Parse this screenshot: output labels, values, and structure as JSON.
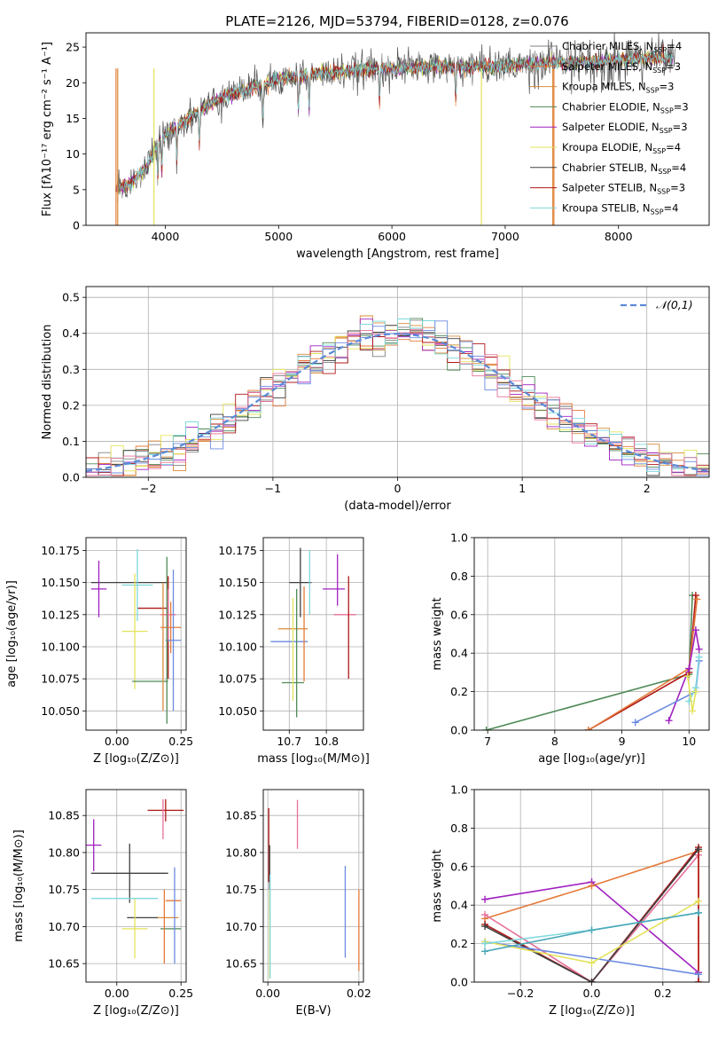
{
  "figure": {
    "title": "PLATE=2126, MJD=53794, FIBERID=0128, z=0.076"
  },
  "series_colors": [
    "#808080",
    "#e47a3a",
    "#d98c3a",
    "#4e8a57",
    "#a020c0",
    "#e3e35a",
    "#404040",
    "#b01818",
    "#7fd8dc",
    "#6a8be0",
    "#e6709a"
  ],
  "chart_data": [
    {
      "name": "spectrum",
      "type": "line",
      "xlabel": "wavelength [Angstrom, rest frame]",
      "ylabel": "Flux [fλ10⁻¹⁷ erg cm⁻² s⁻¹ A⁻¹]",
      "xlim": [
        3300,
        8800
      ],
      "ylim": [
        0,
        27
      ],
      "xticks": [
        4000,
        5000,
        6000,
        7000,
        8000
      ],
      "yticks": [
        0,
        5,
        10,
        15,
        20,
        25
      ],
      "grid": false,
      "legend_position": "right",
      "series": [
        {
          "name": "Chabrier MILES, N_SSP=4",
          "color": "#808080"
        },
        {
          "name": "Salpeter MILES, N_SSP=3",
          "color": "#e47a3a"
        },
        {
          "name": "Kroupa MILES, N_SSP=3",
          "color": "#d98c3a"
        },
        {
          "name": "Chabrier ELODIE, N_SSP=3",
          "color": "#4e8a57"
        },
        {
          "name": "Salpeter ELODIE, N_SSP=3",
          "color": "#a020c0"
        },
        {
          "name": "Kroupa ELODIE, N_SSP=4",
          "color": "#e3e35a"
        },
        {
          "name": "Chabrier STELIB, N_SSP=4",
          "color": "#404040"
        },
        {
          "name": "Salpeter STELIB, N_SSP=3",
          "color": "#b01818"
        },
        {
          "name": "Kroupa STELIB, N_SSP=4",
          "color": "#7fd8dc"
        }
      ],
      "continuum": {
        "x": [
          3560,
          3700,
          3850,
          3950,
          4100,
          4300,
          4500,
          4800,
          5000,
          5200,
          5400,
          5700,
          6000,
          6300,
          6600,
          6900,
          7200,
          7500,
          7800,
          8100,
          8400
        ],
        "y": [
          5,
          6,
          8.5,
          12,
          14,
          16,
          18,
          19.5,
          20.5,
          21,
          21.3,
          21.8,
          22,
          22.2,
          22.3,
          22.3,
          22.6,
          22.8,
          23,
          23.3,
          23.5
        ]
      }
    },
    {
      "name": "residual-distribution",
      "type": "line",
      "xlabel": "(data-model)/error",
      "ylabel": "Normed distribution",
      "xlim": [
        -2.5,
        2.5
      ],
      "ylim": [
        0,
        0.53
      ],
      "xticks": [
        -2,
        -1,
        0,
        1,
        2
      ],
      "yticks": [
        0.0,
        0.1,
        0.2,
        0.3,
        0.4,
        0.5
      ],
      "grid": true,
      "legend_position": "top-right",
      "legend_label": "𝒩(0,1)",
      "bin_width": 0.1
    },
    {
      "name": "age-vs-Z",
      "type": "scatter",
      "xlabel": "Z [log₁₀(Z/Z⊙)]",
      "ylabel": "age  [log₁₀(age/yr)]",
      "xlim": [
        -0.12,
        0.27
      ],
      "ylim": [
        10.035,
        10.185
      ],
      "xticks": [
        0.0,
        0.25
      ],
      "yticks": [
        10.05,
        10.075,
        10.1,
        10.125,
        10.15,
        10.175
      ],
      "points": [
        {
          "x": -0.07,
          "y": 10.15,
          "xe": 0.06,
          "ye": 0.0,
          "c": "#404040",
          "xl": -0.1,
          "xh": 0.2
        },
        {
          "x": 0.2,
          "y": 10.115,
          "xe": 0.0,
          "ye": 0.04,
          "c": "#b01818"
        },
        {
          "x": 0.14,
          "y": 10.13,
          "xe": 0.06,
          "ye": 0.0,
          "c": "#b01818"
        },
        {
          "x": -0.07,
          "y": 10.145,
          "xe": 0.03,
          "ye": 0.022,
          "c": "#a020c0"
        },
        {
          "x": 0.08,
          "y": 10.148,
          "xe": 0.06,
          "ye": 0.028,
          "c": "#7fd8dc"
        },
        {
          "x": 0.07,
          "y": 10.112,
          "xe": 0.05,
          "ye": 0.045,
          "c": "#e3e35a"
        },
        {
          "x": 0.2,
          "y": 10.125,
          "xe": 0.03,
          "ye": 0.02,
          "c": "#e6709a"
        },
        {
          "x": 0.21,
          "y": 10.115,
          "xe": 0.04,
          "ye": 0.02,
          "c": "#e47a3a"
        },
        {
          "x": 0.22,
          "y": 10.105,
          "xe": 0.03,
          "ye": 0.055,
          "c": "#6a8be0"
        },
        {
          "x": 0.13,
          "y": 10.073,
          "xe": 0.07,
          "ye": 0.0,
          "c": "#4e8a57"
        },
        {
          "x": 0.195,
          "y": 10.105,
          "xe": 0.0,
          "ye": 0.065,
          "c": "#4e8a57"
        },
        {
          "x": 0.18,
          "y": 10.1,
          "xe": 0.0,
          "ye": 0.05,
          "c": "#d98c3a"
        }
      ]
    },
    {
      "name": "age-vs-mass",
      "type": "scatter",
      "xlabel": "mass [log₁₀(M/M⊙)]",
      "ylabel": "",
      "xlim": [
        10.63,
        10.9
      ],
      "ylim": [
        10.035,
        10.185
      ],
      "xticks": [
        10.7,
        10.8
      ],
      "yticks": [
        10.05,
        10.075,
        10.1,
        10.125,
        10.15,
        10.175
      ],
      "points": [
        {
          "x": 10.71,
          "y": 10.072,
          "xe": 0.03,
          "ye": 0.0,
          "c": "#4e8a57"
        },
        {
          "x": 10.7,
          "y": 10.104,
          "xe": 0.05,
          "ye": 0.0,
          "c": "#6a8be0"
        },
        {
          "x": 10.71,
          "y": 10.114,
          "xe": 0.04,
          "ye": 0.0,
          "c": "#d98c3a"
        },
        {
          "x": 10.71,
          "y": 10.098,
          "xe": 0.0,
          "ye": 0.04,
          "c": "#e3e35a"
        },
        {
          "x": 10.72,
          "y": 10.095,
          "xe": 0.0,
          "ye": 0.05,
          "c": "#4e8a57"
        },
        {
          "x": 10.74,
          "y": 10.11,
          "xe": 0.0,
          "ye": 0.037,
          "c": "#e47a3a"
        },
        {
          "x": 10.73,
          "y": 10.15,
          "xe": 0.03,
          "ye": 0.027,
          "c": "#404040"
        },
        {
          "x": 10.755,
          "y": 10.15,
          "xe": 0.0,
          "ye": 0.025,
          "c": "#7fd8dc"
        },
        {
          "x": 10.82,
          "y": 10.145,
          "xe": 0.03,
          "ye": 0.0,
          "c": "#a020c0"
        },
        {
          "x": 10.83,
          "y": 10.152,
          "xe": 0.0,
          "ye": 0.02,
          "c": "#a020c0"
        },
        {
          "x": 10.85,
          "y": 10.125,
          "xe": 0.03,
          "ye": 0.0,
          "c": "#e6709a"
        },
        {
          "x": 10.86,
          "y": 10.115,
          "xe": 0.0,
          "ye": 0.04,
          "c": "#b01818"
        }
      ]
    },
    {
      "name": "mass-weight-vs-age",
      "type": "line",
      "xlabel": "age  [log₁₀(age/yr)]",
      "ylabel": "mass weight",
      "xlim": [
        6.8,
        10.3
      ],
      "ylim": [
        0.0,
        1.0
      ],
      "xticks": [
        7,
        8,
        9,
        10
      ],
      "yticks": [
        0.0,
        0.2,
        0.4,
        0.6,
        0.8,
        1.0
      ],
      "grid": true,
      "series": [
        {
          "c": "#4e8a57",
          "x": [
            6.98,
            10.0,
            10.05
          ],
          "y": [
            0.0,
            0.29,
            0.7
          ]
        },
        {
          "c": "#b01818",
          "x": [
            8.5,
            10.0,
            10.1
          ],
          "y": [
            0.0,
            0.3,
            0.7
          ]
        },
        {
          "c": "#e47a3a",
          "x": [
            8.5,
            10.0,
            10.12
          ],
          "y": [
            0.0,
            0.32,
            0.68
          ]
        },
        {
          "c": "#a020c0",
          "x": [
            9.7,
            10.0,
            10.1,
            10.15
          ],
          "y": [
            0.05,
            0.32,
            0.52,
            0.42
          ]
        },
        {
          "c": "#6a8be0",
          "x": [
            9.2,
            10.1,
            10.15
          ],
          "y": [
            0.04,
            0.2,
            0.36
          ]
        },
        {
          "c": "#7fd8dc",
          "x": [
            10.0,
            10.1,
            10.15
          ],
          "y": [
            0.15,
            0.22,
            0.38
          ]
        },
        {
          "c": "#e3e35a",
          "x": [
            9.98,
            10.05,
            10.1
          ],
          "y": [
            0.28,
            0.1,
            0.2
          ]
        }
      ]
    },
    {
      "name": "mass-vs-Z",
      "type": "scatter",
      "xlabel": "Z [log₁₀(Z/Z⊙)]",
      "ylabel": "mass [log₁₀(M/M⊙)]",
      "xlim": [
        -0.12,
        0.27
      ],
      "ylim": [
        10.625,
        10.885
      ],
      "xticks": [
        0.0,
        0.25
      ],
      "yticks": [
        10.65,
        10.7,
        10.75,
        10.8,
        10.85
      ],
      "points": [
        {
          "x": 0.19,
          "y": 10.857,
          "xe": 0.07,
          "ye": 0.015,
          "c": "#b01818"
        },
        {
          "x": 0.18,
          "y": 10.845,
          "xe": 0.0,
          "ye": 0.027,
          "c": "#e6709a"
        },
        {
          "x": -0.09,
          "y": 10.81,
          "xe": 0.03,
          "ye": 0.035,
          "c": "#a020c0"
        },
        {
          "x": 0.05,
          "y": 10.772,
          "xe": 0.15,
          "ye": 0.0,
          "c": "#404040"
        },
        {
          "x": 0.05,
          "y": 10.772,
          "xe": 0.0,
          "ye": 0.04,
          "c": "#404040"
        },
        {
          "x": 0.03,
          "y": 10.738,
          "xe": 0.13,
          "ye": 0.0,
          "c": "#7fd8dc"
        },
        {
          "x": 0.22,
          "y": 10.735,
          "xe": 0.03,
          "ye": 0.0,
          "c": "#e47a3a"
        },
        {
          "x": 0.1,
          "y": 10.712,
          "xe": 0.06,
          "ye": 0.0,
          "c": "#404040"
        },
        {
          "x": 0.2,
          "y": 10.712,
          "xe": 0.04,
          "ye": 0.0,
          "c": "#d98c3a"
        },
        {
          "x": 0.07,
          "y": 10.697,
          "xe": 0.05,
          "ye": 0.04,
          "c": "#e3e35a"
        },
        {
          "x": 0.21,
          "y": 10.697,
          "xe": 0.04,
          "ye": 0.0,
          "c": "#4e8a57"
        },
        {
          "x": 0.225,
          "y": 10.715,
          "xe": 0.0,
          "ye": 0.065,
          "c": "#6a8be0"
        },
        {
          "x": 0.185,
          "y": 10.7,
          "xe": 0.0,
          "ye": 0.05,
          "c": "#e47a3a"
        }
      ]
    },
    {
      "name": "mass-vs-EBV",
      "type": "scatter",
      "xlabel": "E(B-V)",
      "ylabel": "",
      "xlim": [
        -0.001,
        0.021
      ],
      "ylim": [
        10.625,
        10.885
      ],
      "xticks": [
        0.0,
        0.02
      ],
      "yticks": [
        10.65,
        10.7,
        10.75,
        10.8,
        10.85
      ],
      "points": [
        {
          "x": 0.0002,
          "y": 10.81,
          "xe": 0.0,
          "ye": 0.05,
          "c": "#b01818"
        },
        {
          "x": 0.0004,
          "y": 10.76,
          "xe": 0.0,
          "ye": 0.05,
          "c": "#404040"
        },
        {
          "x": 0.0004,
          "y": 10.69,
          "xe": 0.0,
          "ye": 0.06,
          "c": "#e3e35a"
        },
        {
          "x": 0.0005,
          "y": 10.7,
          "xe": 0.0,
          "ye": 0.07,
          "c": "#7fd8dc"
        },
        {
          "x": 0.0065,
          "y": 10.838,
          "xe": 0.0,
          "ye": 0.033,
          "c": "#e6709a"
        },
        {
          "x": 0.017,
          "y": 10.72,
          "xe": 0.0,
          "ye": 0.062,
          "c": "#6a8be0"
        },
        {
          "x": 0.02,
          "y": 10.695,
          "xe": 0.0,
          "ye": 0.055,
          "c": "#e47a3a"
        }
      ]
    },
    {
      "name": "mass-weight-vs-Z",
      "type": "line",
      "xlabel": "Z [log₁₀(Z/Z⊙)]",
      "ylabel": "mass weight",
      "xlim": [
        -0.33,
        0.33
      ],
      "ylim": [
        0.0,
        1.0
      ],
      "xticks": [
        -0.2,
        0.0,
        0.2
      ],
      "yticks": [
        0.0,
        0.2,
        0.4,
        0.6,
        0.8,
        1.0
      ],
      "grid": true,
      "series": [
        {
          "c": "#a020c0",
          "x": [
            -0.3,
            0.0,
            0.3
          ],
          "y": [
            0.43,
            0.52,
            0.05
          ]
        },
        {
          "c": "#e47a3a",
          "x": [
            -0.3,
            0.0,
            0.3,
            0.3
          ],
          "y": [
            0.33,
            0.5,
            0.68,
            0.0
          ]
        },
        {
          "c": "#e6709a",
          "x": [
            -0.3,
            0.0,
            0.3
          ],
          "y": [
            0.35,
            0.0,
            0.66
          ]
        },
        {
          "c": "#b01818",
          "x": [
            -0.3,
            0.0,
            0.3,
            0.3
          ],
          "y": [
            0.3,
            0.0,
            0.7,
            0.0
          ]
        },
        {
          "c": "#404040",
          "x": [
            -0.3,
            0.0,
            0.3
          ],
          "y": [
            0.29,
            0.0,
            0.69
          ]
        },
        {
          "c": "#6a8be0",
          "x": [
            -0.3,
            0.3
          ],
          "y": [
            0.21,
            0.04
          ]
        },
        {
          "c": "#e3e35a",
          "x": [
            -0.3,
            0.0,
            0.3
          ],
          "y": [
            0.21,
            0.1,
            0.42
          ]
        },
        {
          "c": "#7fd8dc",
          "x": [
            -0.3,
            0.0,
            0.3
          ],
          "y": [
            0.2,
            0.27,
            0.36
          ]
        },
        {
          "c": "#4aa8b8",
          "x": [
            -0.3,
            0.0,
            0.3
          ],
          "y": [
            0.16,
            0.27,
            0.36
          ]
        }
      ]
    }
  ]
}
